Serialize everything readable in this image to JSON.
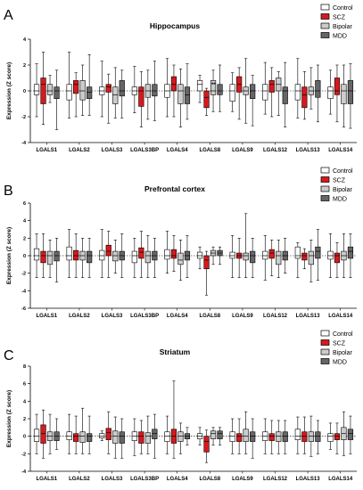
{
  "colors": {
    "Control": "#ffffff",
    "SCZ": "#d7191c",
    "Bipolar": "#cccccc",
    "MDD": "#666666"
  },
  "chart_data": [
    {
      "type": "box",
      "panel": "A",
      "title": "Hippocampus",
      "ylabel": "Expression (Z score)",
      "ylim": [
        -4,
        4
      ],
      "yticks": [
        -4,
        -2,
        0,
        2,
        4
      ],
      "legend": [
        "Control",
        "SCZ",
        "Bipolar",
        "MDD"
      ],
      "annotations": [
        {
          "category": "LGALS8",
          "text": "**"
        }
      ],
      "categories": [
        "LGALS1",
        "LGALS2",
        "LGALS3",
        "LGALS3BP",
        "LGALS4",
        "LGALS8",
        "LGALS9",
        "LGALS12",
        "LGALS13",
        "LGALS14"
      ],
      "series": [
        {
          "name": "Control",
          "boxes": [
            [
              -2,
              -0.3,
              0,
              0.5,
              2.1
            ],
            [
              -2.1,
              -0.7,
              0,
              0.5,
              3
            ],
            [
              -2,
              -0.3,
              0,
              0.3,
              2.3
            ],
            [
              -1.7,
              -0.3,
              0,
              0.3,
              1.9
            ],
            [
              -2,
              -0.5,
              0,
              0.5,
              2.5
            ],
            [
              -0.9,
              0,
              0.5,
              0.8,
              1.2
            ],
            [
              -1.6,
              -0.8,
              0,
              0.5,
              1.4
            ],
            [
              -1.8,
              -0.7,
              0,
              0.5,
              2.2
            ],
            [
              -2.1,
              -0.7,
              0,
              0.5,
              2.5
            ],
            [
              -1.8,
              -0.6,
              0,
              0.3,
              1.6
            ]
          ]
        },
        {
          "name": "SCZ",
          "boxes": [
            [
              -2.6,
              -1,
              0.5,
              1,
              3
            ],
            [
              -2,
              -0.2,
              0.5,
              0.8,
              1.4
            ],
            [
              -2.5,
              -0.1,
              0.3,
              0.5,
              1.3
            ],
            [
              -2.8,
              -1.2,
              0,
              0.3,
              1.5
            ],
            [
              -2,
              0,
              0.5,
              1.1,
              2
            ],
            [
              -1.9,
              -1.3,
              -0.5,
              0,
              0.2
            ],
            [
              -2.2,
              -0.1,
              0.5,
              1.1,
              1.8
            ],
            [
              -2,
              -0.1,
              0.5,
              0.8,
              1.8
            ],
            [
              -2.2,
              -1.3,
              -0.3,
              0.3,
              1.5
            ],
            [
              -2.4,
              -0.3,
              0,
              1,
              2
            ]
          ]
        },
        {
          "name": "Bipolar",
          "boxes": [
            [
              -0.9,
              -0.3,
              0,
              0.5,
              1.2
            ],
            [
              -1.9,
              -0.7,
              0,
              0.8,
              2
            ],
            [
              -2.1,
              -1,
              -0.3,
              0.3,
              1.8
            ],
            [
              -2.2,
              -0.5,
              0,
              0.5,
              1.6
            ],
            [
              -2.8,
              -1,
              0,
              0.5,
              1.7
            ],
            [
              -1.6,
              -0.3,
              0,
              0.8,
              1.6
            ],
            [
              -2.5,
              -0.3,
              0,
              0.3,
              2.5
            ],
            [
              -1.9,
              0,
              0.5,
              1,
              1.5
            ],
            [
              -1.4,
              -0.3,
              0,
              0.3,
              1.8
            ],
            [
              -2.8,
              -1,
              0,
              0.5,
              2
            ]
          ]
        },
        {
          "name": "MDD",
          "boxes": [
            [
              -3,
              -0.6,
              0,
              0.3,
              1.6
            ],
            [
              -1.9,
              -0.6,
              -0.1,
              0.3,
              2.8
            ],
            [
              -2.1,
              -0.4,
              0,
              0.8,
              1.6
            ],
            [
              -2.3,
              -0.4,
              0,
              0.5,
              2.3
            ],
            [
              -2.2,
              -1,
              -0.3,
              0.3,
              2.1
            ],
            [
              -1.6,
              -0.3,
              0,
              0.5,
              2
            ],
            [
              -2.7,
              -0.6,
              0,
              0.5,
              1.2
            ],
            [
              -2.8,
              -1,
              0,
              0.3,
              2.2
            ],
            [
              -2.4,
              -0.5,
              0,
              0.8,
              2
            ],
            [
              -2.9,
              -1,
              0,
              0.8,
              2.1
            ]
          ]
        }
      ]
    },
    {
      "type": "box",
      "panel": "B",
      "title": "Prefrontal cortex",
      "ylabel": "Expression (Z score)",
      "ylim": [
        -6,
        6
      ],
      "yticks": [
        -6,
        -4,
        -2,
        0,
        2,
        4,
        6
      ],
      "legend": [
        "Control",
        "SCZ",
        "Bipolar",
        "MDD"
      ],
      "annotations": [],
      "categories": [
        "LGALS1",
        "LGALS2",
        "LGALS3",
        "LGALS3BP",
        "LGALS4",
        "LGALS8",
        "LGALS9",
        "LGALS12",
        "LGALS13",
        "LGALS14"
      ],
      "series": [
        {
          "name": "Control",
          "boxes": [
            [
              -2.5,
              -0.5,
              0,
              0.8,
              2.5
            ],
            [
              -2.5,
              -0.5,
              0,
              1,
              3
            ],
            [
              -2.5,
              -0.5,
              0,
              0.6,
              3
            ],
            [
              -2.5,
              -0.8,
              0,
              0.5,
              2
            ],
            [
              -2,
              -0.4,
              0,
              0.7,
              2.8
            ],
            [
              -1.5,
              -0.3,
              0,
              0.4,
              1
            ],
            [
              -2.5,
              -0.3,
              0,
              0.4,
              2.3
            ],
            [
              -2.8,
              -0.4,
              0,
              0.5,
              2.3
            ],
            [
              -2.5,
              -0.3,
              0,
              1,
              1.5
            ],
            [
              -2.5,
              -0.4,
              0,
              0.5,
              2.5
            ]
          ]
        },
        {
          "name": "SCZ",
          "boxes": [
            [
              -2.5,
              -0.8,
              0,
              0.5,
              2.5
            ],
            [
              -2.5,
              -0.5,
              0,
              0.6,
              2.5
            ],
            [
              -2.5,
              0,
              0.5,
              1.2,
              2.8
            ],
            [
              -2.5,
              -0.3,
              0.4,
              0.9,
              2.8
            ],
            [
              -1.8,
              -0.3,
              0,
              0.7,
              2.3
            ],
            [
              -4.5,
              -1.5,
              -0.5,
              0,
              0.5
            ],
            [
              -2.5,
              -0.3,
              0,
              0.3,
              2
            ],
            [
              -2.3,
              -0.3,
              0.3,
              0.7,
              1.8
            ],
            [
              -1.5,
              -0.5,
              0,
              0.3,
              0.8
            ],
            [
              -2.5,
              -0.8,
              0,
              0.3,
              1.5
            ]
          ]
        },
        {
          "name": "Bipolar",
          "boxes": [
            [
              -2.5,
              -1,
              0,
              0.5,
              1.8
            ],
            [
              -2.5,
              -0.5,
              0,
              0.5,
              2
            ],
            [
              -2,
              -0.6,
              0,
              0.5,
              1.8
            ],
            [
              -2.5,
              -0.8,
              0,
              0.5,
              2.3
            ],
            [
              -2.8,
              -1,
              -0.5,
              0.3,
              1.8
            ],
            [
              -1,
              0,
              0.3,
              0.6,
              1
            ],
            [
              -2.5,
              -0.5,
              0,
              0.3,
              4.8
            ],
            [
              -2.5,
              -1,
              0,
              0.5,
              1.8
            ],
            [
              -3,
              -1,
              0,
              0.5,
              1.8
            ],
            [
              -2.5,
              -0.5,
              0,
              0.5,
              2.5
            ]
          ]
        },
        {
          "name": "MDD",
          "boxes": [
            [
              -3,
              -0.6,
              0,
              0.5,
              2
            ],
            [
              -2.5,
              -0.8,
              0,
              0.5,
              2
            ],
            [
              -2.5,
              -0.5,
              0,
              0.5,
              2.5
            ],
            [
              -2.5,
              -0.5,
              0,
              0.5,
              2
            ],
            [
              -2.5,
              -0.5,
              0,
              0.5,
              2.3
            ],
            [
              -1,
              0,
              0.3,
              0.6,
              1
            ],
            [
              -2.5,
              -0.8,
              0,
              0.5,
              2
            ],
            [
              -2,
              -0.5,
              0,
              0.5,
              2
            ],
            [
              -2.8,
              -0.3,
              0.5,
              1,
              3
            ],
            [
              -2.5,
              -0.3,
              0.5,
              1,
              2.5
            ]
          ]
        }
      ]
    },
    {
      "type": "box",
      "panel": "C",
      "title": "Striatum",
      "ylabel": "Expression (Z score)",
      "ylim": [
        -4,
        8
      ],
      "yticks": [
        -4,
        -2,
        0,
        2,
        4,
        6,
        8
      ],
      "legend": [
        "Control",
        "SCZ",
        "Bipolar",
        "MDD"
      ],
      "annotations": [],
      "categories": [
        "LGALS1",
        "LGALS2",
        "LGALS3",
        "LGALS3BP",
        "LGALS4",
        "LGALS8",
        "LGALS9",
        "LGALS12",
        "LGALS13",
        "LGALS14"
      ],
      "series": [
        {
          "name": "Control",
          "boxes": [
            [
              -2,
              -0.6,
              0,
              0.8,
              2.5
            ],
            [
              -2,
              -0.4,
              0,
              0.5,
              2.5
            ],
            [
              -0.5,
              -0.2,
              0,
              0.3,
              0.6
            ],
            [
              -2.2,
              -0.5,
              0,
              0.5,
              2
            ],
            [
              -2,
              -0.6,
              0,
              0.5,
              2.3
            ],
            [
              -1,
              -0.3,
              0,
              0.3,
              1
            ],
            [
              -2,
              -0.6,
              0,
              0.5,
              2
            ],
            [
              -2,
              -0.5,
              0,
              0.5,
              2
            ],
            [
              -2,
              -0.4,
              0,
              0.8,
              2.2
            ],
            [
              -1.5,
              -0.6,
              0,
              0.3,
              1.5
            ]
          ]
        },
        {
          "name": "SCZ",
          "boxes": [
            [
              -2.5,
              -0.8,
              0.3,
              1.3,
              3
            ],
            [
              -2,
              -0.6,
              0,
              0.3,
              2.3
            ],
            [
              -2,
              -0.4,
              0.4,
              0.9,
              2.8
            ],
            [
              -2,
              -0.8,
              0,
              0.5,
              1.8
            ],
            [
              -2.5,
              -0.8,
              0,
              0.8,
              6.3
            ],
            [
              -3,
              -1.8,
              -0.6,
              0,
              0.7
            ],
            [
              -2,
              -0.6,
              0,
              0.3,
              2
            ],
            [
              -2,
              -0.5,
              0,
              0.3,
              1.8
            ],
            [
              -2,
              -0.6,
              0,
              0.5,
              2.2
            ],
            [
              -2,
              -0.4,
              0,
              0.3,
              1.5
            ]
          ]
        },
        {
          "name": "Bipolar",
          "boxes": [
            [
              -2,
              -0.5,
              0,
              0.5,
              2.5
            ],
            [
              -2,
              -0.7,
              0,
              0.5,
              3.2
            ],
            [
              -2.5,
              -0.8,
              0,
              0.6,
              2.2
            ],
            [
              -2,
              -0.8,
              0,
              0.4,
              2.3
            ],
            [
              -2,
              -0.6,
              0,
              0.5,
              1.5
            ],
            [
              -1,
              -0.3,
              0.3,
              0.6,
              1
            ],
            [
              -2,
              -0.6,
              0,
              0.8,
              2.8
            ],
            [
              -2,
              -0.6,
              0,
              0.5,
              1.8
            ],
            [
              -2.3,
              -0.6,
              0,
              0.5,
              2.3
            ],
            [
              -2.2,
              -0.4,
              0.3,
              1,
              2.8
            ]
          ]
        },
        {
          "name": "MDD",
          "boxes": [
            [
              -1.5,
              -0.5,
              0,
              0.5,
              2
            ],
            [
              -2,
              -0.6,
              0,
              0.3,
              2.3
            ],
            [
              -2.5,
              -0.8,
              0,
              0.5,
              2
            ],
            [
              -2.5,
              -0.3,
              0.3,
              0.8,
              2.5
            ],
            [
              -1,
              -0.3,
              0,
              0.3,
              1
            ],
            [
              -1,
              -0.3,
              0.3,
              0.6,
              1
            ],
            [
              -2.5,
              -0.6,
              0,
              0.5,
              2
            ],
            [
              -2,
              -0.6,
              0,
              0.5,
              1.8
            ],
            [
              -2,
              -0.6,
              0,
              0.5,
              1.8
            ],
            [
              -2,
              -0.4,
              0.3,
              0.8,
              2.3
            ]
          ]
        }
      ]
    }
  ]
}
